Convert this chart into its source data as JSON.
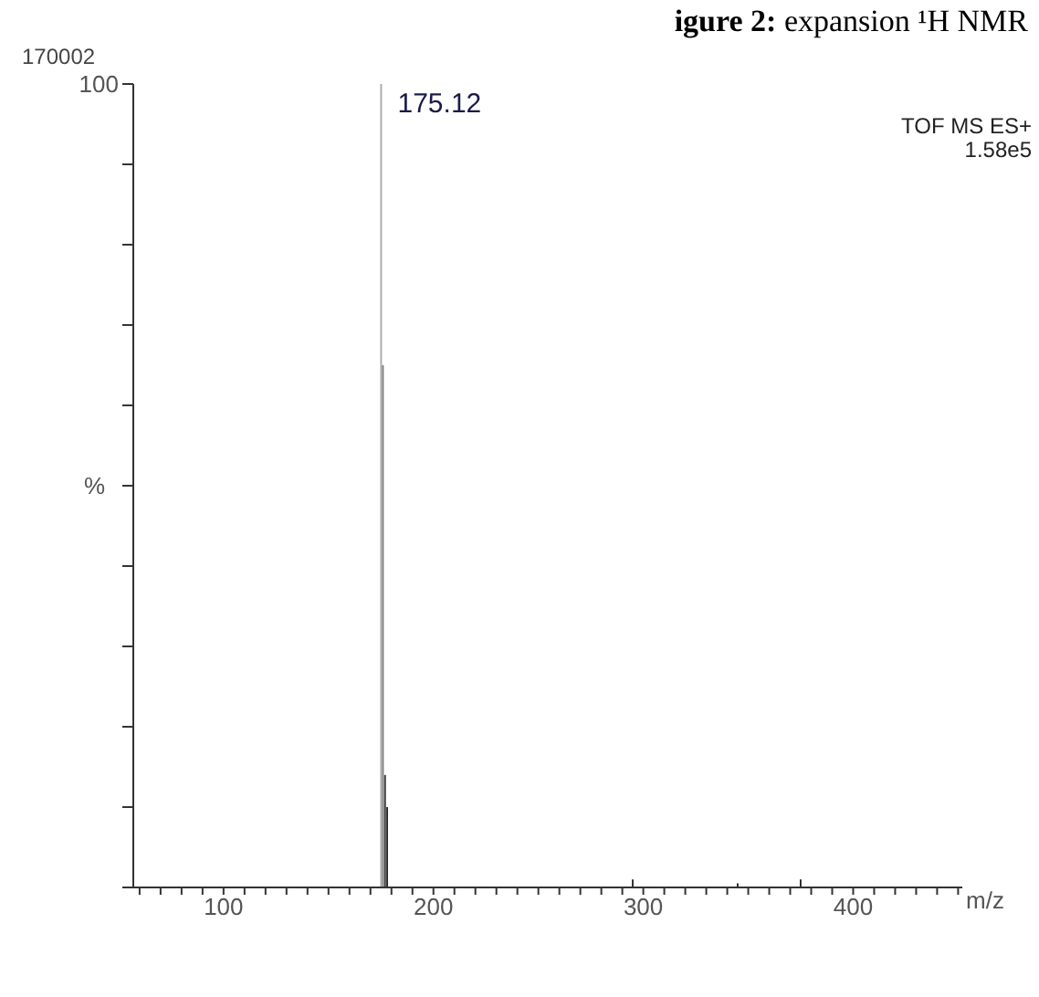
{
  "chart_data": {
    "type": "bar",
    "title": "igure 2: expansion ¹H NMR",
    "xlabel": "m/z",
    "ylabel": "%",
    "annotations": [
      "170002",
      "TOF MS ES+",
      "1.58e5",
      {
        "text": "175.12",
        "x": 175.12,
        "y": 100
      }
    ],
    "x": [
      175.12,
      176,
      177,
      178,
      295,
      345,
      375
    ],
    "values": [
      100,
      65,
      14,
      10,
      1,
      0.5,
      1
    ],
    "colors": [
      "#a6a6a6",
      "#7a7a7a",
      "#303030",
      "#202020",
      "#202020",
      "#202020",
      "#202020"
    ],
    "xlim": [
      57,
      452
    ],
    "xticks": [
      {
        "value": 60,
        "label": null
      },
      {
        "value": 70,
        "label": null
      },
      {
        "value": 80,
        "label": null
      },
      {
        "value": 90,
        "label": null
      },
      100,
      {
        "value": 110,
        "label": null
      },
      {
        "value": 120,
        "label": null
      },
      {
        "value": 130,
        "label": null
      },
      {
        "value": 140,
        "label": null
      },
      {
        "value": 150,
        "label": null
      },
      {
        "value": 160,
        "label": null
      },
      {
        "value": 170,
        "label": null
      },
      {
        "value": 180,
        "label": null
      },
      {
        "value": 190,
        "label": null
      },
      200,
      {
        "value": 210,
        "label": null
      },
      {
        "value": 220,
        "label": null
      },
      {
        "value": 230,
        "label": null
      },
      {
        "value": 240,
        "label": null
      },
      {
        "value": 250,
        "label": null
      },
      {
        "value": 260,
        "label": null
      },
      {
        "value": 270,
        "label": null
      },
      {
        "value": 280,
        "label": null
      },
      {
        "value": 290,
        "label": null
      },
      300,
      {
        "value": 310,
        "label": null
      },
      {
        "value": 320,
        "label": null
      },
      {
        "value": 330,
        "label": null
      },
      {
        "value": 340,
        "label": null
      },
      {
        "value": 350,
        "label": null
      },
      {
        "value": 360,
        "label": null
      },
      {
        "value": 370,
        "label": null
      },
      {
        "value": 380,
        "label": null
      },
      {
        "value": 390,
        "label": null
      },
      400,
      {
        "value": 410,
        "label": null
      },
      {
        "value": 420,
        "label": null
      },
      {
        "value": 430,
        "label": null
      },
      {
        "value": 440,
        "label": null
      },
      {
        "value": 450,
        "label": null
      }
    ],
    "ylim": [
      0,
      100
    ],
    "yticks": [
      0,
      {
        "value": 10,
        "label": null
      },
      {
        "value": 20,
        "label": null
      },
      {
        "value": 30,
        "label": null
      },
      {
        "value": 40,
        "label": null
      },
      {
        "value": 50,
        "label": null
      },
      {
        "value": 60,
        "label": null
      },
      {
        "value": 70,
        "label": null
      },
      {
        "value": 80,
        "label": null
      },
      {
        "value": 90,
        "label": null
      },
      100
    ]
  }
}
